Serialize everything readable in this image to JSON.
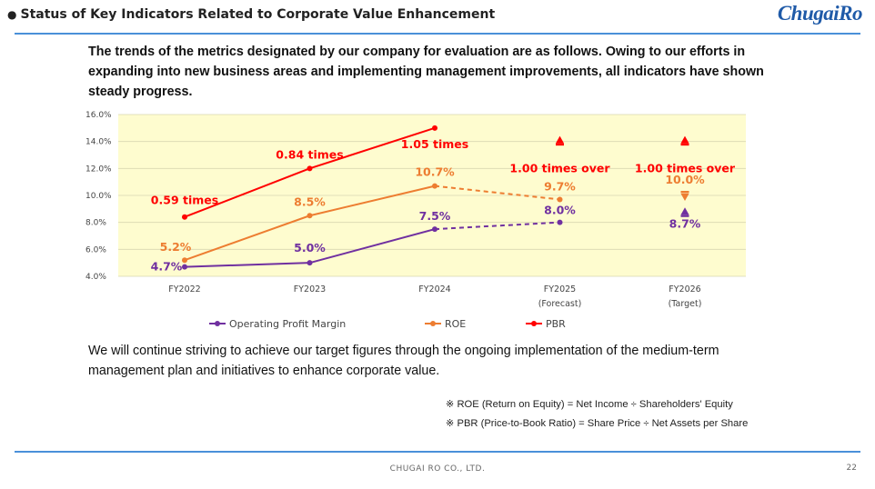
{
  "header": {
    "bullet": "●",
    "title": "Status of Key Indicators Related to Corporate Value Enhancement",
    "logo": "ChugaiRo"
  },
  "intro": "The trends of the metrics designated by our company for evaluation are as follows. Owing to our efforts in expanding into new business areas and implementing management improvements, all indicators have shown steady progress.",
  "chart_data": {
    "type": "line",
    "categories": [
      "FY2022",
      "FY2023",
      "FY2024",
      "FY2025\n(Forecast)",
      "FY2026\n(Target)"
    ],
    "ylim": [
      4.0,
      16.0
    ],
    "yticks": [
      "4.0%",
      "6.0%",
      "8.0%",
      "10.0%",
      "12.0%",
      "14.0%",
      "16.0%"
    ],
    "grid": true,
    "legend_position": "bottom",
    "series": [
      {
        "name": "Operating Profit Margin",
        "color": "#7030a0",
        "values": [
          4.7,
          5.0,
          7.5,
          8.0,
          8.7
        ],
        "labels": [
          "4.7%",
          "5.0%",
          "7.5%",
          "8.0%",
          "8.7%"
        ],
        "forecast_from_index": 2,
        "target_index": 4
      },
      {
        "name": "ROE",
        "color": "#ed7d31",
        "values": [
          5.2,
          8.5,
          10.7,
          9.7,
          10.0
        ],
        "labels": [
          "5.2%",
          "8.5%",
          "10.7%",
          "9.7%",
          "10.0%"
        ],
        "forecast_from_index": 2,
        "target_index": 4
      },
      {
        "name": "PBR",
        "color": "#ff0000",
        "values": [
          8.4,
          12.0,
          15.0,
          14.0,
          14.0
        ],
        "labels": [
          "0.59 times",
          "0.84 times",
          "1.05 times",
          "1.00 times over",
          "1.00 times over"
        ],
        "forecast_from_index": 2,
        "markers_only_from_index": 3
      }
    ]
  },
  "closing": "We will continue striving to achieve our target figures through the ongoing implementation of the medium-term management plan and initiatives to enhance corporate value.",
  "notes": [
    "※ ROE (Return on Equity) = Net Income ÷ Shareholders' Equity",
    "※ PBR (Price-to-Book Ratio) = Share Price ÷ Net Assets per Share"
  ],
  "footer": {
    "company": "CHUGAI RO CO., LTD.",
    "page": "22"
  }
}
